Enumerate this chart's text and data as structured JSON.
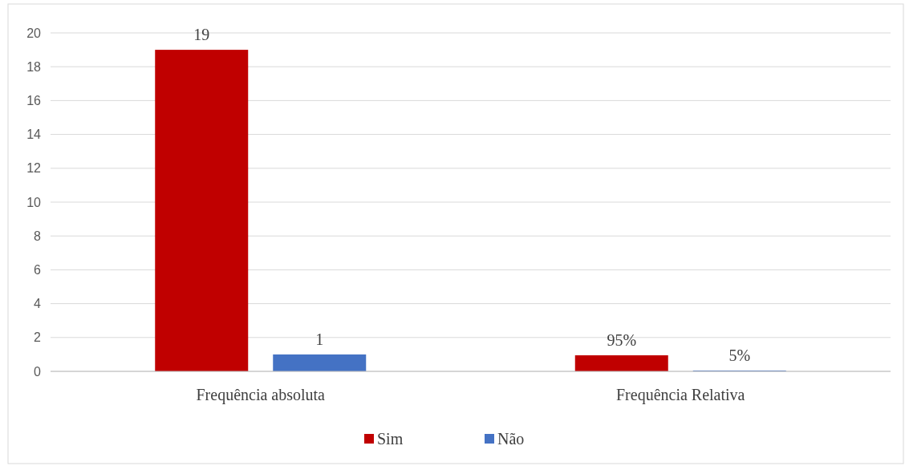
{
  "chart_data": {
    "type": "bar",
    "categories": [
      "Frequência absoluta",
      "Frequência Relativa"
    ],
    "series": [
      {
        "name": "Sim",
        "color": "#c00000",
        "values": [
          19,
          0.95
        ],
        "value_labels": [
          "19",
          "95%"
        ]
      },
      {
        "name": "Não",
        "color": "#4472c4",
        "values": [
          1,
          0.05
        ],
        "value_labels": [
          "1",
          "5%"
        ]
      }
    ],
    "ylim": [
      0,
      20
    ],
    "yticks": [
      0,
      2,
      4,
      6,
      8,
      10,
      12,
      14,
      16,
      18,
      20
    ],
    "grid": "y",
    "legend": "bottom"
  }
}
